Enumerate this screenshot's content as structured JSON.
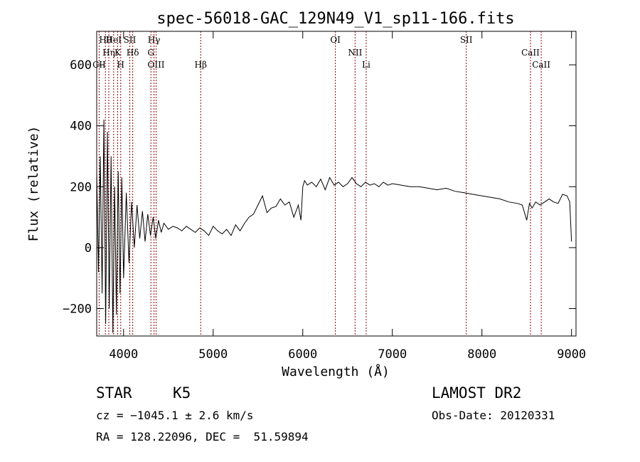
{
  "title": "spec-56018-GAC_129N49_V1_sp11-166.fits",
  "info": {
    "object_class": "STAR",
    "subclass": "K5",
    "survey": "LAMOST DR2",
    "cz": "cz = −1045.1 ± 2.6 km/s",
    "obs_date": "Obs-Date: 20120331",
    "coords": "RA = 128.22096, DEC =  51.59894"
  },
  "chart_data": {
    "type": "line",
    "title": "spec-56018-GAC_129N49_V1_sp11-166.fits",
    "xlabel": "Wavelength (Å)",
    "ylabel": "Flux (relative)",
    "xlim": [
      3700,
      9050
    ],
    "ylim": [
      -290,
      710
    ],
    "grid": false,
    "xticks": [
      4000,
      5000,
      6000,
      7000,
      8000,
      9000
    ],
    "xtick_labels": [
      "4000",
      "5000",
      "6000",
      "7000",
      "8000",
      "9000"
    ],
    "yticks": [
      -200,
      0,
      200,
      400,
      600
    ],
    "ytick_labels": [
      "−200",
      "0",
      "200",
      "400",
      "600"
    ],
    "line_color": "#000000",
    "marker_color": "#8b0000",
    "series": [
      {
        "x": [
          3700,
          3720,
          3740,
          3760,
          3780,
          3800,
          3820,
          3840,
          3860,
          3880,
          3900,
          3920,
          3940,
          3960,
          3980,
          4000,
          4030,
          4060,
          4090,
          4120,
          4150,
          4180,
          4210,
          4240,
          4270,
          4300,
          4330,
          4360,
          4390,
          4420,
          4450,
          4500,
          4550,
          4600,
          4650,
          4700,
          4750,
          4800,
          4850,
          4900,
          4950,
          5000,
          5050,
          5100,
          5150,
          5200,
          5250,
          5300,
          5350,
          5400,
          5450,
          5500,
          5550,
          5600,
          5650,
          5700,
          5750,
          5800,
          5850,
          5900,
          5950,
          5980,
          6000,
          6020,
          6050,
          6100,
          6150,
          6200,
          6250,
          6300,
          6350,
          6400,
          6450,
          6500,
          6550,
          6600,
          6650,
          6700,
          6750,
          6800,
          6850,
          6900,
          6950,
          7000,
          7100,
          7200,
          7300,
          7400,
          7500,
          7600,
          7700,
          7800,
          7900,
          8000,
          8100,
          8200,
          8300,
          8400,
          8450,
          8480,
          8500,
          8530,
          8560,
          8600,
          8650,
          8700,
          8750,
          8800,
          8850,
          8900,
          8950,
          8980,
          9000
        ],
        "values": [
          250,
          -80,
          300,
          -150,
          420,
          -250,
          380,
          -200,
          300,
          -280,
          200,
          -220,
          250,
          -150,
          230,
          -100,
          180,
          -50,
          150,
          0,
          140,
          30,
          120,
          20,
          110,
          40,
          100,
          30,
          90,
          50,
          80,
          60,
          70,
          65,
          55,
          70,
          60,
          50,
          65,
          55,
          40,
          70,
          55,
          45,
          60,
          40,
          75,
          55,
          80,
          100,
          110,
          140,
          170,
          115,
          130,
          135,
          160,
          140,
          150,
          100,
          140,
          90,
          200,
          220,
          205,
          215,
          200,
          225,
          190,
          230,
          205,
          215,
          200,
          210,
          230,
          210,
          200,
          215,
          205,
          210,
          200,
          215,
          205,
          210,
          205,
          200,
          200,
          195,
          190,
          195,
          185,
          180,
          175,
          170,
          165,
          160,
          150,
          145,
          140,
          110,
          90,
          145,
          130,
          150,
          140,
          150,
          160,
          150,
          145,
          175,
          170,
          150,
          20
        ]
      }
    ],
    "line_markers": [
      {
        "label": "Hθ",
        "x": 3797
      },
      {
        "label": "Hη",
        "x": 3835
      },
      {
        "label": "CII",
        "x": 3727
      },
      {
        "label": "HeI",
        "x": 3889
      },
      {
        "label": "K",
        "x": 3934
      },
      {
        "label": "H",
        "x": 3968
      },
      {
        "label": "SII",
        "x": 4069
      },
      {
        "label": "Hδ",
        "x": 4102
      },
      {
        "label": "OIII",
        "x": 4363
      },
      {
        "label": "Hγ",
        "x": 4340
      },
      {
        "label": "G",
        "x": 4305
      },
      {
        "label": "Hβ",
        "x": 4861
      },
      {
        "label": "OI",
        "x": 6364
      },
      {
        "label": "NII",
        "x": 6584
      },
      {
        "label": "Li",
        "x": 6708
      },
      {
        "label": "SII",
        "x": 7825
      },
      {
        "label": "CaII",
        "x": 8542
      },
      {
        "label": "CaII",
        "x": 8662
      }
    ]
  }
}
